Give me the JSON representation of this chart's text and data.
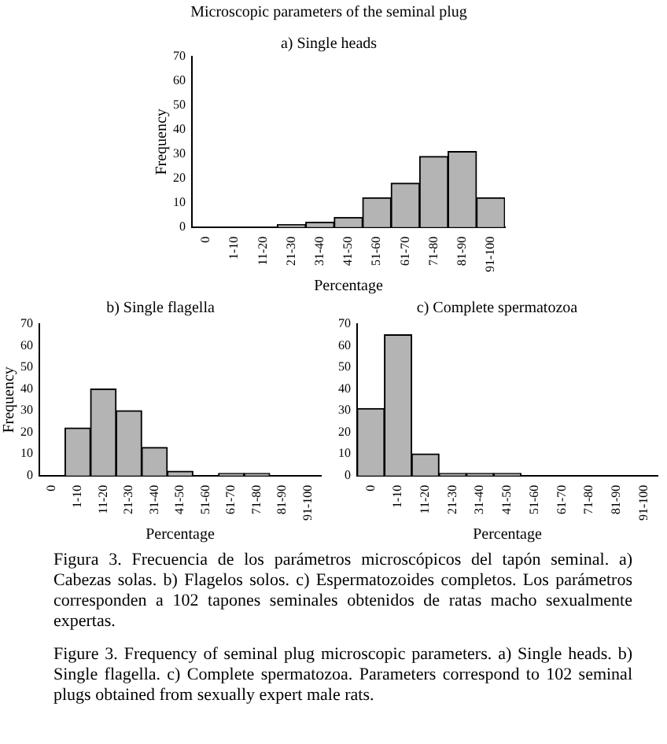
{
  "chart_data": [
    {
      "type": "bar",
      "title": "Microscopic parameters of the seminal plug",
      "subtitle": "a) Single heads",
      "xlabel": "Percentage",
      "ylabel": "Frequency",
      "categories": [
        "0",
        "1-10",
        "11-20",
        "21-30",
        "31-40",
        "41-50",
        "51-60",
        "61-70",
        "71-80",
        "81-90",
        "91-100"
      ],
      "values": [
        0,
        0,
        0,
        1,
        2,
        4,
        12,
        18,
        29,
        31,
        12
      ],
      "color": "#b4b4b4",
      "ylim": [
        0,
        70
      ],
      "yticks": [
        0,
        10,
        20,
        30,
        40,
        50,
        60,
        70
      ]
    },
    {
      "type": "bar",
      "title": "b) Single flagella",
      "xlabel": "Percentage",
      "ylabel": "Frequency",
      "categories": [
        "0",
        "1-10",
        "11-20",
        "21-30",
        "31-40",
        "41-50",
        "51-60",
        "61-70",
        "71-80",
        "81-90",
        "91-100"
      ],
      "values": [
        0,
        22,
        40,
        30,
        13,
        2,
        0,
        1,
        1,
        0,
        0
      ],
      "color": "#b4b4b4",
      "ylim": [
        0,
        70
      ],
      "yticks": [
        0,
        10,
        20,
        30,
        40,
        50,
        60,
        70
      ]
    },
    {
      "type": "bar",
      "title": "c) Complete spermatozoa",
      "xlabel": "Percentage",
      "categories": [
        "0",
        "1-10",
        "11-20",
        "21-30",
        "31-40",
        "41-50",
        "51-60",
        "61-70",
        "71-80",
        "81-90",
        "91-100"
      ],
      "values": [
        31,
        65,
        10,
        1,
        1,
        1,
        0,
        0,
        0,
        0,
        0
      ],
      "color": "#b4b4b4",
      "ylim": [
        0,
        70
      ],
      "yticks": [
        0,
        10,
        20,
        30,
        40,
        50,
        60,
        70
      ],
      "annotations": [
        "Figura 3. Frecuencia de los parámetros microscópicos del tapón seminal. a) Cabezas solas. b) Flagelos solos. c) Espermatozoides completos. Los parámetros corresponden a 102 tapones seminales obtenidos de ratas macho sexualmente expertas.",
        "Figure 3. Frequency of seminal plug microscopic parameters. a) Single heads. b) Single flagella. c) Complete spermatozoa. Parameters correspond to 102 seminal plugs obtained from sexually expert male rats."
      ]
    }
  ]
}
